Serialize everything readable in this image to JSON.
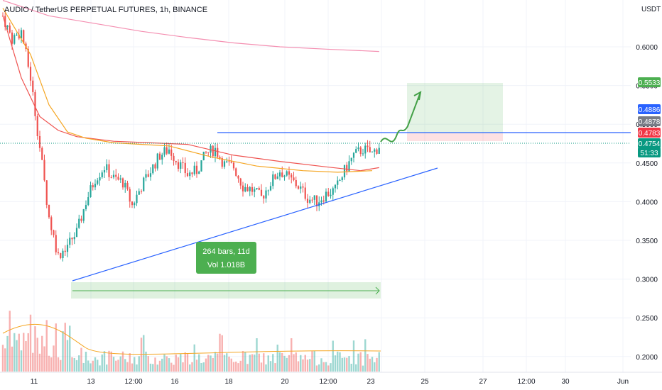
{
  "chart_data": {
    "type": "candlestick",
    "title": "AUDIO / TetherUS PERPETUAL FUTURES, 1h, BINANCE",
    "ylabel": "USDT",
    "ylim": [
      0.18,
      0.66
    ],
    "y_ticks": [
      "0.6000",
      "0.5500",
      "0.5000",
      "0.4500",
      "0.4000",
      "0.3500",
      "0.3000",
      "0.2500",
      "0.2000"
    ],
    "x_ticks": [
      "11",
      "13",
      "12:00",
      "16",
      "18",
      "20",
      "12:00",
      "23",
      "25",
      "27",
      "12:00",
      "30",
      "Jun"
    ],
    "price_labels": [
      {
        "value": "0.5533",
        "color": "#4caf50"
      },
      {
        "value": "0.4886",
        "color": "#2962ff"
      },
      {
        "value": "0.4878",
        "color": "#787b86"
      },
      {
        "value": "0.4783",
        "color": "#f23645"
      },
      {
        "value": "0.4754",
        "color": "#089981"
      },
      {
        "value": "51:33",
        "color": "#089981"
      }
    ],
    "measure_label": {
      "line1": "264 bars, 11d",
      "line2": "Vol 1.018B"
    },
    "price_path": [
      {
        "x": 0,
        "y": 0.64
      },
      {
        "x": 4,
        "y": 0.61
      },
      {
        "x": 8,
        "y": 0.62
      },
      {
        "x": 12,
        "y": 0.56
      },
      {
        "x": 16,
        "y": 0.47
      },
      {
        "x": 20,
        "y": 0.38
      },
      {
        "x": 24,
        "y": 0.33
      },
      {
        "x": 28,
        "y": 0.345
      },
      {
        "x": 32,
        "y": 0.36
      },
      {
        "x": 36,
        "y": 0.4
      },
      {
        "x": 40,
        "y": 0.43
      },
      {
        "x": 44,
        "y": 0.445
      },
      {
        "x": 48,
        "y": 0.43
      },
      {
        "x": 52,
        "y": 0.425
      },
      {
        "x": 56,
        "y": 0.395
      },
      {
        "x": 60,
        "y": 0.42
      },
      {
        "x": 64,
        "y": 0.44
      },
      {
        "x": 68,
        "y": 0.46
      },
      {
        "x": 72,
        "y": 0.468
      },
      {
        "x": 76,
        "y": 0.45
      },
      {
        "x": 80,
        "y": 0.435
      },
      {
        "x": 84,
        "y": 0.44
      },
      {
        "x": 88,
        "y": 0.462
      },
      {
        "x": 92,
        "y": 0.468
      },
      {
        "x": 96,
        "y": 0.448
      },
      {
        "x": 100,
        "y": 0.445
      },
      {
        "x": 104,
        "y": 0.42
      },
      {
        "x": 108,
        "y": 0.415
      },
      {
        "x": 112,
        "y": 0.405
      },
      {
        "x": 116,
        "y": 0.425
      },
      {
        "x": 120,
        "y": 0.44
      },
      {
        "x": 124,
        "y": 0.43
      },
      {
        "x": 128,
        "y": 0.42
      },
      {
        "x": 132,
        "y": 0.405
      },
      {
        "x": 136,
        "y": 0.4
      },
      {
        "x": 140,
        "y": 0.41
      },
      {
        "x": 144,
        "y": 0.415
      },
      {
        "x": 148,
        "y": 0.44
      },
      {
        "x": 152,
        "y": 0.46
      },
      {
        "x": 156,
        "y": 0.468
      },
      {
        "x": 160,
        "y": 0.462
      },
      {
        "x": 163,
        "y": 0.472
      }
    ],
    "series": [
      {
        "name": "",
        "color": "#ef5350",
        "points": [
          [
            0.0,
            0.64
          ],
          [
            8.0,
            0.56
          ],
          [
            16.0,
            0.51
          ],
          [
            24.0,
            0.492
          ],
          [
            32.0,
            0.484
          ],
          [
            48.0,
            0.478
          ],
          [
            64.0,
            0.476
          ],
          [
            80.0,
            0.474
          ],
          [
            100.0,
            0.46
          ],
          [
            120.0,
            0.452
          ],
          [
            140.0,
            0.445
          ],
          [
            155.0,
            0.44
          ],
          [
            163.0,
            0.444
          ]
        ]
      },
      {
        "name": "",
        "color": "#f5a623",
        "points": [
          [
            0.0,
            0.65
          ],
          [
            12.0,
            0.59
          ],
          [
            20.0,
            0.525
          ],
          [
            28.0,
            0.49
          ],
          [
            36.0,
            0.482
          ],
          [
            48.0,
            0.476
          ],
          [
            60.0,
            0.474
          ],
          [
            72.0,
            0.472
          ],
          [
            90.0,
            0.458
          ],
          [
            110.0,
            0.446
          ],
          [
            130.0,
            0.44
          ],
          [
            145.0,
            0.438
          ],
          [
            160.0,
            0.44
          ]
        ]
      },
      {
        "name": "",
        "color": "#f48fb1",
        "points": [
          [
            0.0,
            0.66
          ],
          [
            20.0,
            0.64
          ],
          [
            40.0,
            0.63
          ],
          [
            60.0,
            0.62
          ],
          [
            80.0,
            0.612
          ],
          [
            100.0,
            0.605
          ],
          [
            120.0,
            0.6
          ],
          [
            140.0,
            0.597
          ],
          [
            163.0,
            0.594
          ]
        ]
      }
    ]
  }
}
